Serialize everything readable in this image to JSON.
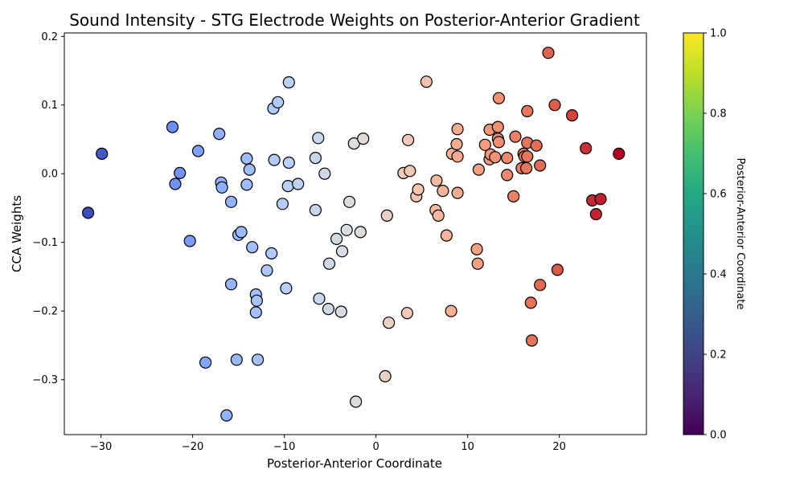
{
  "chart_data": {
    "type": "scatter",
    "title": "Sound Intensity - STG Electrode Weights on Posterior-Anterior Gradient",
    "xlabel": "Posterior-Anterior Coordinate",
    "ylabel": "CCA Weights",
    "xlim": [
      -34,
      29.5
    ],
    "ylim": [
      -0.38,
      0.205
    ],
    "x_ticks": [
      -30,
      -20,
      -10,
      0,
      10,
      20
    ],
    "x_tick_labels": [
      "−30",
      "−20",
      "−10",
      "0",
      "10",
      "20"
    ],
    "y_ticks": [
      -0.3,
      -0.2,
      -0.1,
      0.0,
      0.1,
      0.2
    ],
    "y_tick_labels": [
      "−0.3",
      "−0.2",
      "−0.1",
      "0.0",
      "0.1",
      "0.2"
    ],
    "grid": false,
    "point_colormap": "coolwarm",
    "point_color_range": [
      -31.5,
      26.5
    ],
    "colorbar": {
      "label": "Posterior-Anterior Coordinate",
      "colormap": "viridis",
      "range": [
        0.0,
        1.0
      ],
      "ticks": [
        0.0,
        0.2,
        0.4,
        0.6,
        0.8,
        1.0
      ],
      "tick_labels": [
        "0.0",
        "0.2",
        "0.4",
        "0.6",
        "0.8",
        "1.0"
      ]
    },
    "points": [
      {
        "x": -31.4,
        "y": -0.057
      },
      {
        "x": -29.9,
        "y": 0.029
      },
      {
        "x": -22.2,
        "y": 0.068
      },
      {
        "x": -21.9,
        "y": -0.015
      },
      {
        "x": -21.4,
        "y": 0.001
      },
      {
        "x": -20.3,
        "y": -0.098
      },
      {
        "x": -19.4,
        "y": 0.033
      },
      {
        "x": -18.6,
        "y": -0.275
      },
      {
        "x": -17.1,
        "y": 0.058
      },
      {
        "x": -16.9,
        "y": -0.013
      },
      {
        "x": -16.8,
        "y": -0.02
      },
      {
        "x": -16.3,
        "y": -0.352
      },
      {
        "x": -15.8,
        "y": -0.041
      },
      {
        "x": -15.8,
        "y": -0.161
      },
      {
        "x": -15.2,
        "y": -0.271
      },
      {
        "x": -15.0,
        "y": -0.089
      },
      {
        "x": -14.7,
        "y": -0.085
      },
      {
        "x": -14.1,
        "y": 0.022
      },
      {
        "x": -14.1,
        "y": -0.016
      },
      {
        "x": -13.8,
        "y": 0.006
      },
      {
        "x": -13.5,
        "y": -0.107
      },
      {
        "x": -13.1,
        "y": -0.176
      },
      {
        "x": -13.0,
        "y": -0.185
      },
      {
        "x": -13.1,
        "y": -0.202
      },
      {
        "x": -12.9,
        "y": -0.271
      },
      {
        "x": -11.9,
        "y": -0.141
      },
      {
        "x": -11.4,
        "y": -0.116
      },
      {
        "x": -11.2,
        "y": 0.095
      },
      {
        "x": -11.1,
        "y": 0.02
      },
      {
        "x": -10.7,
        "y": 0.104
      },
      {
        "x": -10.2,
        "y": -0.044
      },
      {
        "x": -9.8,
        "y": -0.167
      },
      {
        "x": -9.6,
        "y": -0.018
      },
      {
        "x": -9.5,
        "y": 0.133
      },
      {
        "x": -9.5,
        "y": 0.016
      },
      {
        "x": -8.5,
        "y": -0.015
      },
      {
        "x": -6.6,
        "y": -0.053
      },
      {
        "x": -6.6,
        "y": 0.023
      },
      {
        "x": -6.3,
        "y": 0.052
      },
      {
        "x": -6.2,
        "y": -0.182
      },
      {
        "x": -5.6,
        "y": 0.0
      },
      {
        "x": -5.2,
        "y": -0.197
      },
      {
        "x": -5.1,
        "y": -0.131
      },
      {
        "x": -4.3,
        "y": -0.095
      },
      {
        "x": -3.8,
        "y": -0.201
      },
      {
        "x": -3.7,
        "y": -0.113
      },
      {
        "x": -3.2,
        "y": -0.082
      },
      {
        "x": -2.9,
        "y": -0.041
      },
      {
        "x": -2.4,
        "y": 0.044
      },
      {
        "x": -2.2,
        "y": -0.332
      },
      {
        "x": -1.7,
        "y": -0.085
      },
      {
        "x": -1.4,
        "y": 0.051
      },
      {
        "x": 1.0,
        "y": -0.295
      },
      {
        "x": 1.2,
        "y": -0.061
      },
      {
        "x": 1.4,
        "y": -0.217
      },
      {
        "x": 3.0,
        "y": 0.001
      },
      {
        "x": 3.4,
        "y": -0.203
      },
      {
        "x": 3.5,
        "y": 0.049
      },
      {
        "x": 3.7,
        "y": 0.004
      },
      {
        "x": 4.4,
        "y": -0.033
      },
      {
        "x": 4.6,
        "y": -0.023
      },
      {
        "x": 5.5,
        "y": 0.134
      },
      {
        "x": 6.5,
        "y": -0.053
      },
      {
        "x": 6.6,
        "y": -0.01
      },
      {
        "x": 6.8,
        "y": -0.061
      },
      {
        "x": 7.3,
        "y": -0.025
      },
      {
        "x": 7.7,
        "y": -0.09
      },
      {
        "x": 8.2,
        "y": -0.2
      },
      {
        "x": 8.3,
        "y": 0.029
      },
      {
        "x": 8.8,
        "y": 0.043
      },
      {
        "x": 8.9,
        "y": 0.065
      },
      {
        "x": 8.9,
        "y": 0.025
      },
      {
        "x": 8.9,
        "y": -0.028
      },
      {
        "x": 11.0,
        "y": -0.11
      },
      {
        "x": 11.1,
        "y": -0.131
      },
      {
        "x": 11.2,
        "y": 0.006
      },
      {
        "x": 11.9,
        "y": 0.042
      },
      {
        "x": 12.4,
        "y": 0.064
      },
      {
        "x": 12.4,
        "y": 0.021
      },
      {
        "x": 12.5,
        "y": 0.028
      },
      {
        "x": 13.0,
        "y": 0.024
      },
      {
        "x": 13.3,
        "y": 0.068
      },
      {
        "x": 13.3,
        "y": 0.051
      },
      {
        "x": 13.4,
        "y": 0.046
      },
      {
        "x": 13.4,
        "y": 0.11
      },
      {
        "x": 14.3,
        "y": 0.023
      },
      {
        "x": 14.3,
        "y": -0.002
      },
      {
        "x": 15.0,
        "y": -0.033
      },
      {
        "x": 15.2,
        "y": 0.054
      },
      {
        "x": 15.9,
        "y": 0.008
      },
      {
        "x": 16.1,
        "y": 0.029
      },
      {
        "x": 16.2,
        "y": 0.025
      },
      {
        "x": 16.4,
        "y": 0.008
      },
      {
        "x": 16.5,
        "y": 0.091
      },
      {
        "x": 16.5,
        "y": 0.045
      },
      {
        "x": 16.5,
        "y": 0.025
      },
      {
        "x": 16.9,
        "y": -0.188
      },
      {
        "x": 17.0,
        "y": -0.243
      },
      {
        "x": 17.5,
        "y": 0.041
      },
      {
        "x": 17.9,
        "y": 0.012
      },
      {
        "x": 17.9,
        "y": -0.162
      },
      {
        "x": 18.8,
        "y": 0.176
      },
      {
        "x": 19.5,
        "y": 0.1
      },
      {
        "x": 19.8,
        "y": -0.14
      },
      {
        "x": 21.4,
        "y": 0.085
      },
      {
        "x": 22.9,
        "y": 0.037
      },
      {
        "x": 23.6,
        "y": -0.039
      },
      {
        "x": 24.0,
        "y": -0.059
      },
      {
        "x": 24.5,
        "y": -0.037
      },
      {
        "x": 26.5,
        "y": 0.029
      }
    ]
  }
}
